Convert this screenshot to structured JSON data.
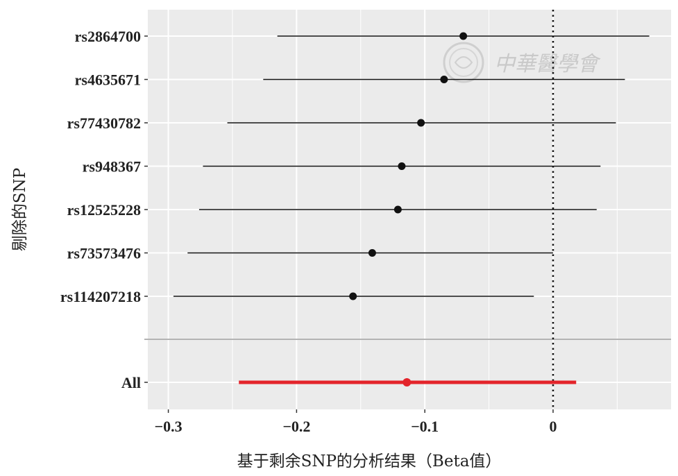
{
  "chart_data": {
    "type": "forest",
    "xlabel": "基于剩余SNP的分析结果（Beta值）",
    "ylabel": "剔除的SNP",
    "xlim": [
      -0.316,
      0.092
    ],
    "x_ticks": [
      -0.3,
      -0.2,
      -0.1,
      0
    ],
    "x_tick_labels": [
      "−0.3",
      "−0.2",
      "−0.1",
      "0"
    ],
    "reference_line": 0,
    "grid": true,
    "rows": [
      {
        "label": "rs2864700",
        "estimate": -0.07,
        "lower": -0.215,
        "upper": 0.075
      },
      {
        "label": "rs4635671",
        "estimate": -0.085,
        "lower": -0.226,
        "upper": 0.056
      },
      {
        "label": "rs77430782",
        "estimate": -0.103,
        "lower": -0.254,
        "upper": 0.049
      },
      {
        "label": "rs948367",
        "estimate": -0.118,
        "lower": -0.273,
        "upper": 0.037
      },
      {
        "label": "rs12525228",
        "estimate": -0.121,
        "lower": -0.276,
        "upper": 0.034
      },
      {
        "label": "rs73573476",
        "estimate": -0.141,
        "lower": -0.285,
        "upper": 0.0
      },
      {
        "label": "rs114207218",
        "estimate": -0.156,
        "lower": -0.296,
        "upper": -0.015
      }
    ],
    "overall": {
      "label": "All",
      "estimate": -0.114,
      "lower": -0.245,
      "upper": 0.018
    },
    "colors": {
      "panel": "#ebebeb",
      "grid": "#ffffff",
      "point": "#111111",
      "overall": "#e3242b",
      "separator": "#b3b3b3"
    }
  },
  "watermark": {
    "text": "中華醫學會",
    "logo": "seal-logo"
  }
}
